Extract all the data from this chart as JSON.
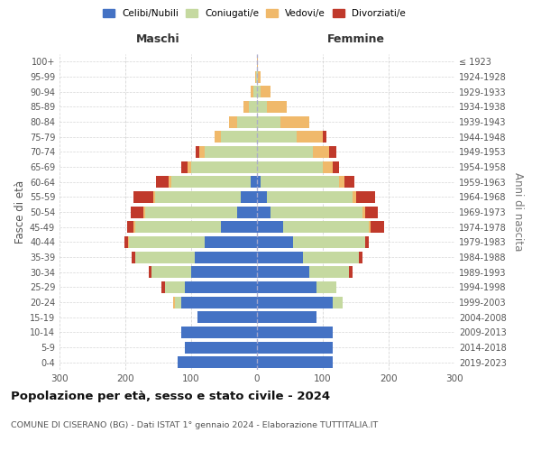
{
  "age_groups": [
    "0-4",
    "5-9",
    "10-14",
    "15-19",
    "20-24",
    "25-29",
    "30-34",
    "35-39",
    "40-44",
    "45-49",
    "50-54",
    "55-59",
    "60-64",
    "65-69",
    "70-74",
    "75-79",
    "80-84",
    "85-89",
    "90-94",
    "95-99",
    "100+"
  ],
  "birth_years": [
    "2019-2023",
    "2014-2018",
    "2009-2013",
    "2004-2008",
    "1999-2003",
    "1994-1998",
    "1989-1993",
    "1984-1988",
    "1979-1983",
    "1974-1978",
    "1969-1973",
    "1964-1968",
    "1959-1963",
    "1954-1958",
    "1949-1953",
    "1944-1948",
    "1939-1943",
    "1934-1938",
    "1929-1933",
    "1924-1928",
    "≤ 1923"
  ],
  "males": {
    "celibi": [
      120,
      110,
      115,
      90,
      115,
      110,
      100,
      95,
      80,
      55,
      30,
      25,
      10,
      0,
      0,
      0,
      0,
      0,
      0,
      0,
      0
    ],
    "coniugati": [
      0,
      0,
      0,
      0,
      10,
      30,
      60,
      90,
      115,
      130,
      140,
      130,
      120,
      100,
      80,
      55,
      30,
      12,
      5,
      2,
      0
    ],
    "vedovi": [
      0,
      0,
      0,
      0,
      2,
      0,
      0,
      0,
      1,
      2,
      2,
      2,
      4,
      5,
      8,
      10,
      12,
      8,
      5,
      1,
      0
    ],
    "divorziati": [
      0,
      0,
      0,
      0,
      0,
      5,
      5,
      5,
      5,
      10,
      20,
      30,
      20,
      10,
      5,
      0,
      0,
      0,
      0,
      0,
      0
    ]
  },
  "females": {
    "nubili": [
      115,
      115,
      115,
      90,
      115,
      90,
      80,
      70,
      55,
      40,
      20,
      15,
      5,
      0,
      0,
      0,
      0,
      0,
      0,
      0,
      0
    ],
    "coniugate": [
      0,
      0,
      0,
      0,
      15,
      30,
      60,
      85,
      110,
      130,
      140,
      130,
      120,
      100,
      85,
      60,
      35,
      15,
      5,
      2,
      0
    ],
    "vedove": [
      0,
      0,
      0,
      0,
      0,
      0,
      0,
      0,
      0,
      3,
      4,
      5,
      8,
      15,
      25,
      40,
      45,
      30,
      15,
      3,
      1
    ],
    "divorziate": [
      0,
      0,
      0,
      0,
      0,
      0,
      5,
      5,
      5,
      20,
      20,
      30,
      15,
      10,
      10,
      5,
      0,
      0,
      0,
      0,
      0
    ]
  },
  "color_celibi": "#4472C4",
  "color_coniugati": "#c5d9a0",
  "color_vedovi": "#f0b96b",
  "color_divorziati": "#c0392b",
  "xlim": 300,
  "title": "Popolazione per età, sesso e stato civile - 2024",
  "subtitle": "COMUNE DI CISERANO (BG) - Dati ISTAT 1° gennaio 2024 - Elaborazione TUTTITALIA.IT",
  "ylabel_left": "Fasce di età",
  "ylabel_right": "Anni di nascita",
  "xlabel_maschi": "Maschi",
  "xlabel_femmine": "Femmine",
  "bg_color": "#ffffff",
  "grid_color": "#cccccc"
}
